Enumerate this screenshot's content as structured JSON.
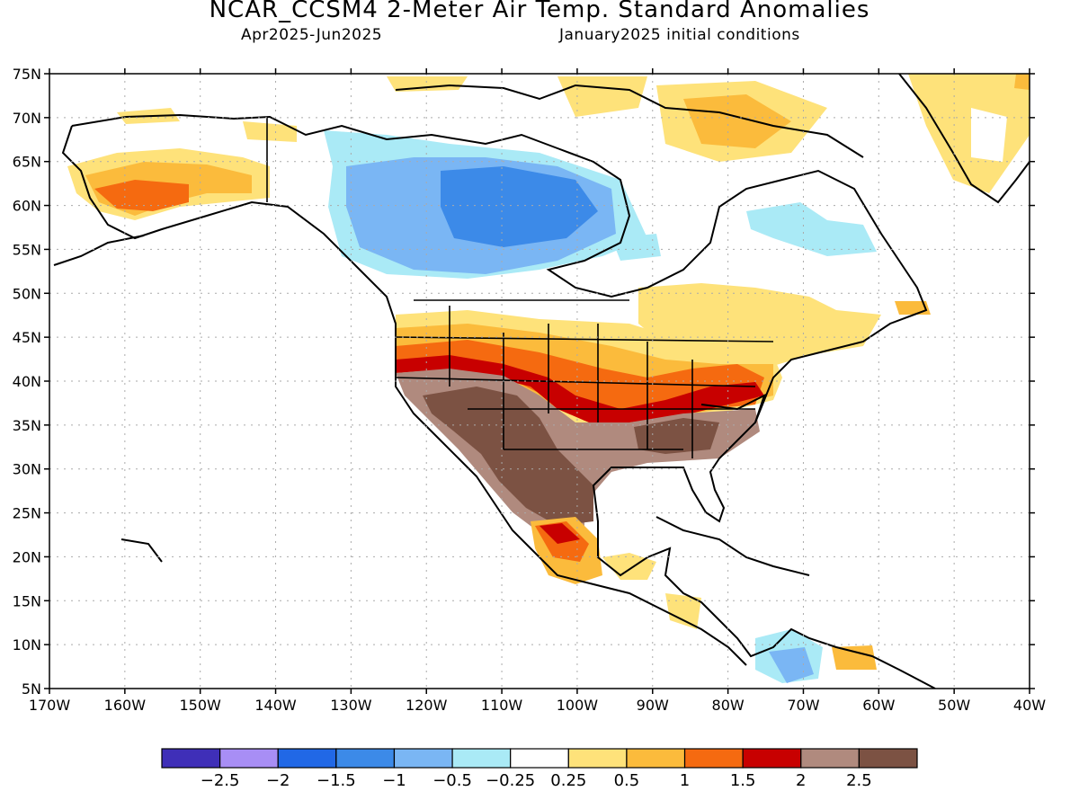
{
  "header": {
    "title": "NCAR_CCSM4 2-Meter Air Temp. Standard Anomalies",
    "period": "Apr2025-Jun2025",
    "init": "January2025 initial conditions"
  },
  "axes": {
    "lat_labels": [
      "75N",
      "70N",
      "65N",
      "60N",
      "55N",
      "50N",
      "45N",
      "40N",
      "35N",
      "30N",
      "25N",
      "20N",
      "15N",
      "10N",
      "5N"
    ],
    "lon_labels": [
      "170W",
      "160W",
      "150W",
      "140W",
      "130W",
      "120W",
      "110W",
      "100W",
      "90W",
      "80W",
      "70W",
      "60W",
      "50W",
      "40W"
    ]
  },
  "colorbar": {
    "colors": [
      "#3f2fb8",
      "#a88ef5",
      "#2168e6",
      "#3c8ae8",
      "#7ab6f4",
      "#aaeaf6",
      "#ffffff",
      "#fee27a",
      "#fbbb3c",
      "#f56a10",
      "#c80000",
      "#b08a7e",
      "#7c5243"
    ],
    "labels": [
      "-2.5",
      "-2",
      "-1.5",
      "-1",
      "-0.5",
      "-0.25",
      "0.25",
      "0.5",
      "1",
      "1.5",
      "2",
      "2.5"
    ]
  },
  "colors": {
    "land_outline": "#000000",
    "grid": "#aaaaaa"
  }
}
